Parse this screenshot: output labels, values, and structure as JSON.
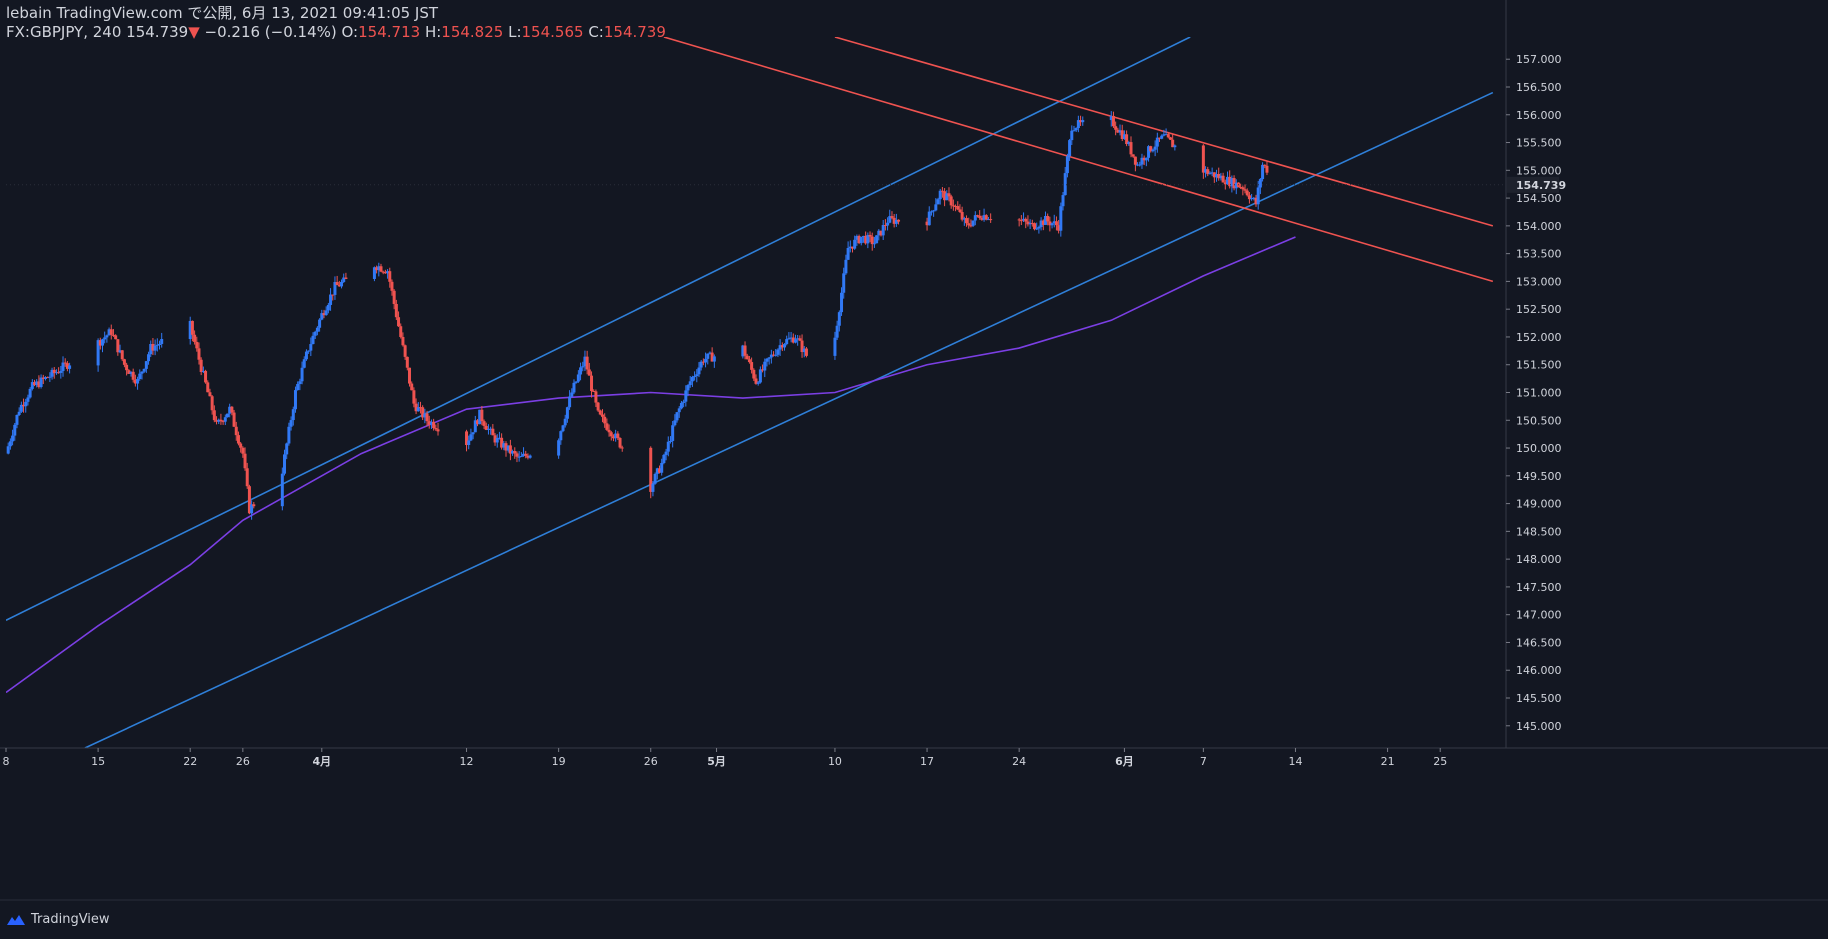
{
  "header": {
    "published": "lebain TradingView.com で公開, 6月 13, 2021 09:41:05 JST",
    "symbol": "FX:GBPJPY, 240",
    "last": "154.739",
    "change_arrow": "▼",
    "change": "−0.216 (−0.14%)",
    "o_label": "O:",
    "o": "154.713",
    "h_label": "H:",
    "h": "154.825",
    "l_label": "L:",
    "l": "154.565",
    "c_label": "C:",
    "c": "154.739"
  },
  "footer": {
    "brand": "TradingView"
  },
  "colors": {
    "background": "#131722",
    "up": "#2962ff",
    "up_light": "#3179f5",
    "down": "#ef5350",
    "ma": "#7b3fe4",
    "channel_up": "#2f7fd8",
    "channel_down": "#ef5350"
  },
  "chart_data": {
    "type": "candlestick",
    "symbol": "FX:GBPJPY",
    "timeframe": "240",
    "x_ticks": [
      "8",
      "15",
      "22",
      "26",
      "4月",
      "12",
      "19",
      "26",
      "5月",
      "10",
      "17",
      "24",
      "6月",
      "7",
      "14",
      "21",
      "25"
    ],
    "y_ticks": [
      "157.000",
      "156.500",
      "156.000",
      "155.500",
      "155.000",
      "154.500",
      "154.000",
      "153.500",
      "153.000",
      "152.500",
      "152.000",
      "151.500",
      "151.000",
      "150.500",
      "150.000",
      "149.500",
      "149.000",
      "148.500",
      "148.000",
      "147.500",
      "147.000",
      "146.500",
      "146.000",
      "145.500",
      "145.000"
    ],
    "ylim": [
      144.6,
      157.4
    ],
    "last_price": "154.739",
    "price_path": [
      [
        "2021-03-08",
        149.9
      ],
      [
        "2021-03-09",
        150.7
      ],
      [
        "2021-03-10",
        151.1
      ],
      [
        "2021-03-12",
        151.4
      ],
      [
        "2021-03-15",
        151.9
      ],
      [
        "2021-03-16",
        152.1
      ],
      [
        "2021-03-17",
        151.5
      ],
      [
        "2021-03-18",
        151.2
      ],
      [
        "2021-03-19",
        151.8
      ],
      [
        "2021-03-22",
        152.2
      ],
      [
        "2021-03-23",
        151.3
      ],
      [
        "2021-03-24",
        150.4
      ],
      [
        "2021-03-25",
        150.7
      ],
      [
        "2021-03-26",
        149.9
      ],
      [
        "2021-03-26T12",
        148.9
      ],
      [
        "2021-03-29",
        149.6
      ],
      [
        "2021-03-30",
        151.0
      ],
      [
        "2021-03-31",
        151.8
      ],
      [
        "2021-04-01",
        152.4
      ],
      [
        "2021-04-02",
        152.9
      ],
      [
        "2021-04-05",
        153.3
      ],
      [
        "2021-04-06",
        153.2
      ],
      [
        "2021-04-07",
        152.0
      ],
      [
        "2021-04-08",
        150.8
      ],
      [
        "2021-04-09",
        150.5
      ],
      [
        "2021-04-12",
        150.1
      ],
      [
        "2021-04-13",
        150.6
      ],
      [
        "2021-04-14",
        150.2
      ],
      [
        "2021-04-15",
        150.0
      ],
      [
        "2021-04-16",
        149.8
      ],
      [
        "2021-04-19",
        150.2
      ],
      [
        "2021-04-20",
        151.0
      ],
      [
        "2021-04-21",
        151.6
      ],
      [
        "2021-04-22",
        150.6
      ],
      [
        "2021-04-23",
        150.3
      ],
      [
        "2021-04-26",
        149.3
      ],
      [
        "2021-04-27",
        149.8
      ],
      [
        "2021-04-28",
        150.6
      ],
      [
        "2021-04-29",
        151.2
      ],
      [
        "2021-04-30",
        151.6
      ],
      [
        "2021-05-03",
        151.8
      ],
      [
        "2021-05-04",
        151.2
      ],
      [
        "2021-05-05",
        151.6
      ],
      [
        "2021-05-06",
        151.9
      ],
      [
        "2021-05-07",
        152.0
      ],
      [
        "2021-05-08",
        151.6
      ],
      [
        "2021-05-10",
        152.0
      ],
      [
        "2021-05-11",
        153.6
      ],
      [
        "2021-05-12",
        153.8
      ],
      [
        "2021-05-13",
        153.7
      ],
      [
        "2021-05-14",
        154.1
      ],
      [
        "2021-05-17",
        154.1
      ],
      [
        "2021-05-18",
        154.6
      ],
      [
        "2021-05-19",
        154.4
      ],
      [
        "2021-05-20",
        154.0
      ],
      [
        "2021-05-21",
        154.2
      ],
      [
        "2021-05-24",
        154.1
      ],
      [
        "2021-05-25",
        154.0
      ],
      [
        "2021-05-26",
        154.1
      ],
      [
        "2021-05-27",
        154.0
      ],
      [
        "2021-05-28",
        155.8
      ],
      [
        "2021-05-31",
        155.9
      ],
      [
        "2021-06-01",
        155.6
      ],
      [
        "2021-06-02",
        155.1
      ],
      [
        "2021-06-03",
        155.4
      ],
      [
        "2021-06-04",
        155.6
      ],
      [
        "2021-06-07",
        155.0
      ],
      [
        "2021-06-08",
        154.9
      ],
      [
        "2021-06-09",
        154.8
      ],
      [
        "2021-06-10",
        154.7
      ],
      [
        "2021-06-11",
        154.4
      ],
      [
        "2021-06-11T12",
        155.1
      ],
      [
        "2021-06-13",
        154.739
      ]
    ],
    "moving_average": [
      [
        "2021-03-08",
        145.6
      ],
      [
        "2021-03-15",
        146.8
      ],
      [
        "2021-03-22",
        147.9
      ],
      [
        "2021-03-26",
        148.7
      ],
      [
        "2021-04-04",
        149.9
      ],
      [
        "2021-04-12",
        150.7
      ],
      [
        "2021-04-19",
        150.9
      ],
      [
        "2021-04-26",
        151.0
      ],
      [
        "2021-05-03",
        150.9
      ],
      [
        "2021-05-10",
        151.0
      ],
      [
        "2021-05-17",
        151.5
      ],
      [
        "2021-05-24",
        151.8
      ],
      [
        "2021-05-31",
        152.3
      ],
      [
        "2021-06-07",
        153.1
      ],
      [
        "2021-06-14",
        153.8
      ]
    ],
    "trendlines": [
      {
        "color": "channel_up",
        "from": [
          "2021-03-08",
          146.9
        ],
        "to": [
          "2021-06-06",
          157.4
        ]
      },
      {
        "color": "channel_up",
        "from": [
          "2021-03-14",
          144.6
        ],
        "to": [
          "2021-06-29",
          156.4
        ]
      },
      {
        "color": "channel_down",
        "from": [
          "2021-04-27",
          157.4
        ],
        "to": [
          "2021-06-29",
          153.0
        ]
      },
      {
        "color": "channel_down",
        "from": [
          "2021-05-10",
          157.4
        ],
        "to": [
          "2021-06-29",
          154.0
        ]
      }
    ],
    "grid": false
  }
}
